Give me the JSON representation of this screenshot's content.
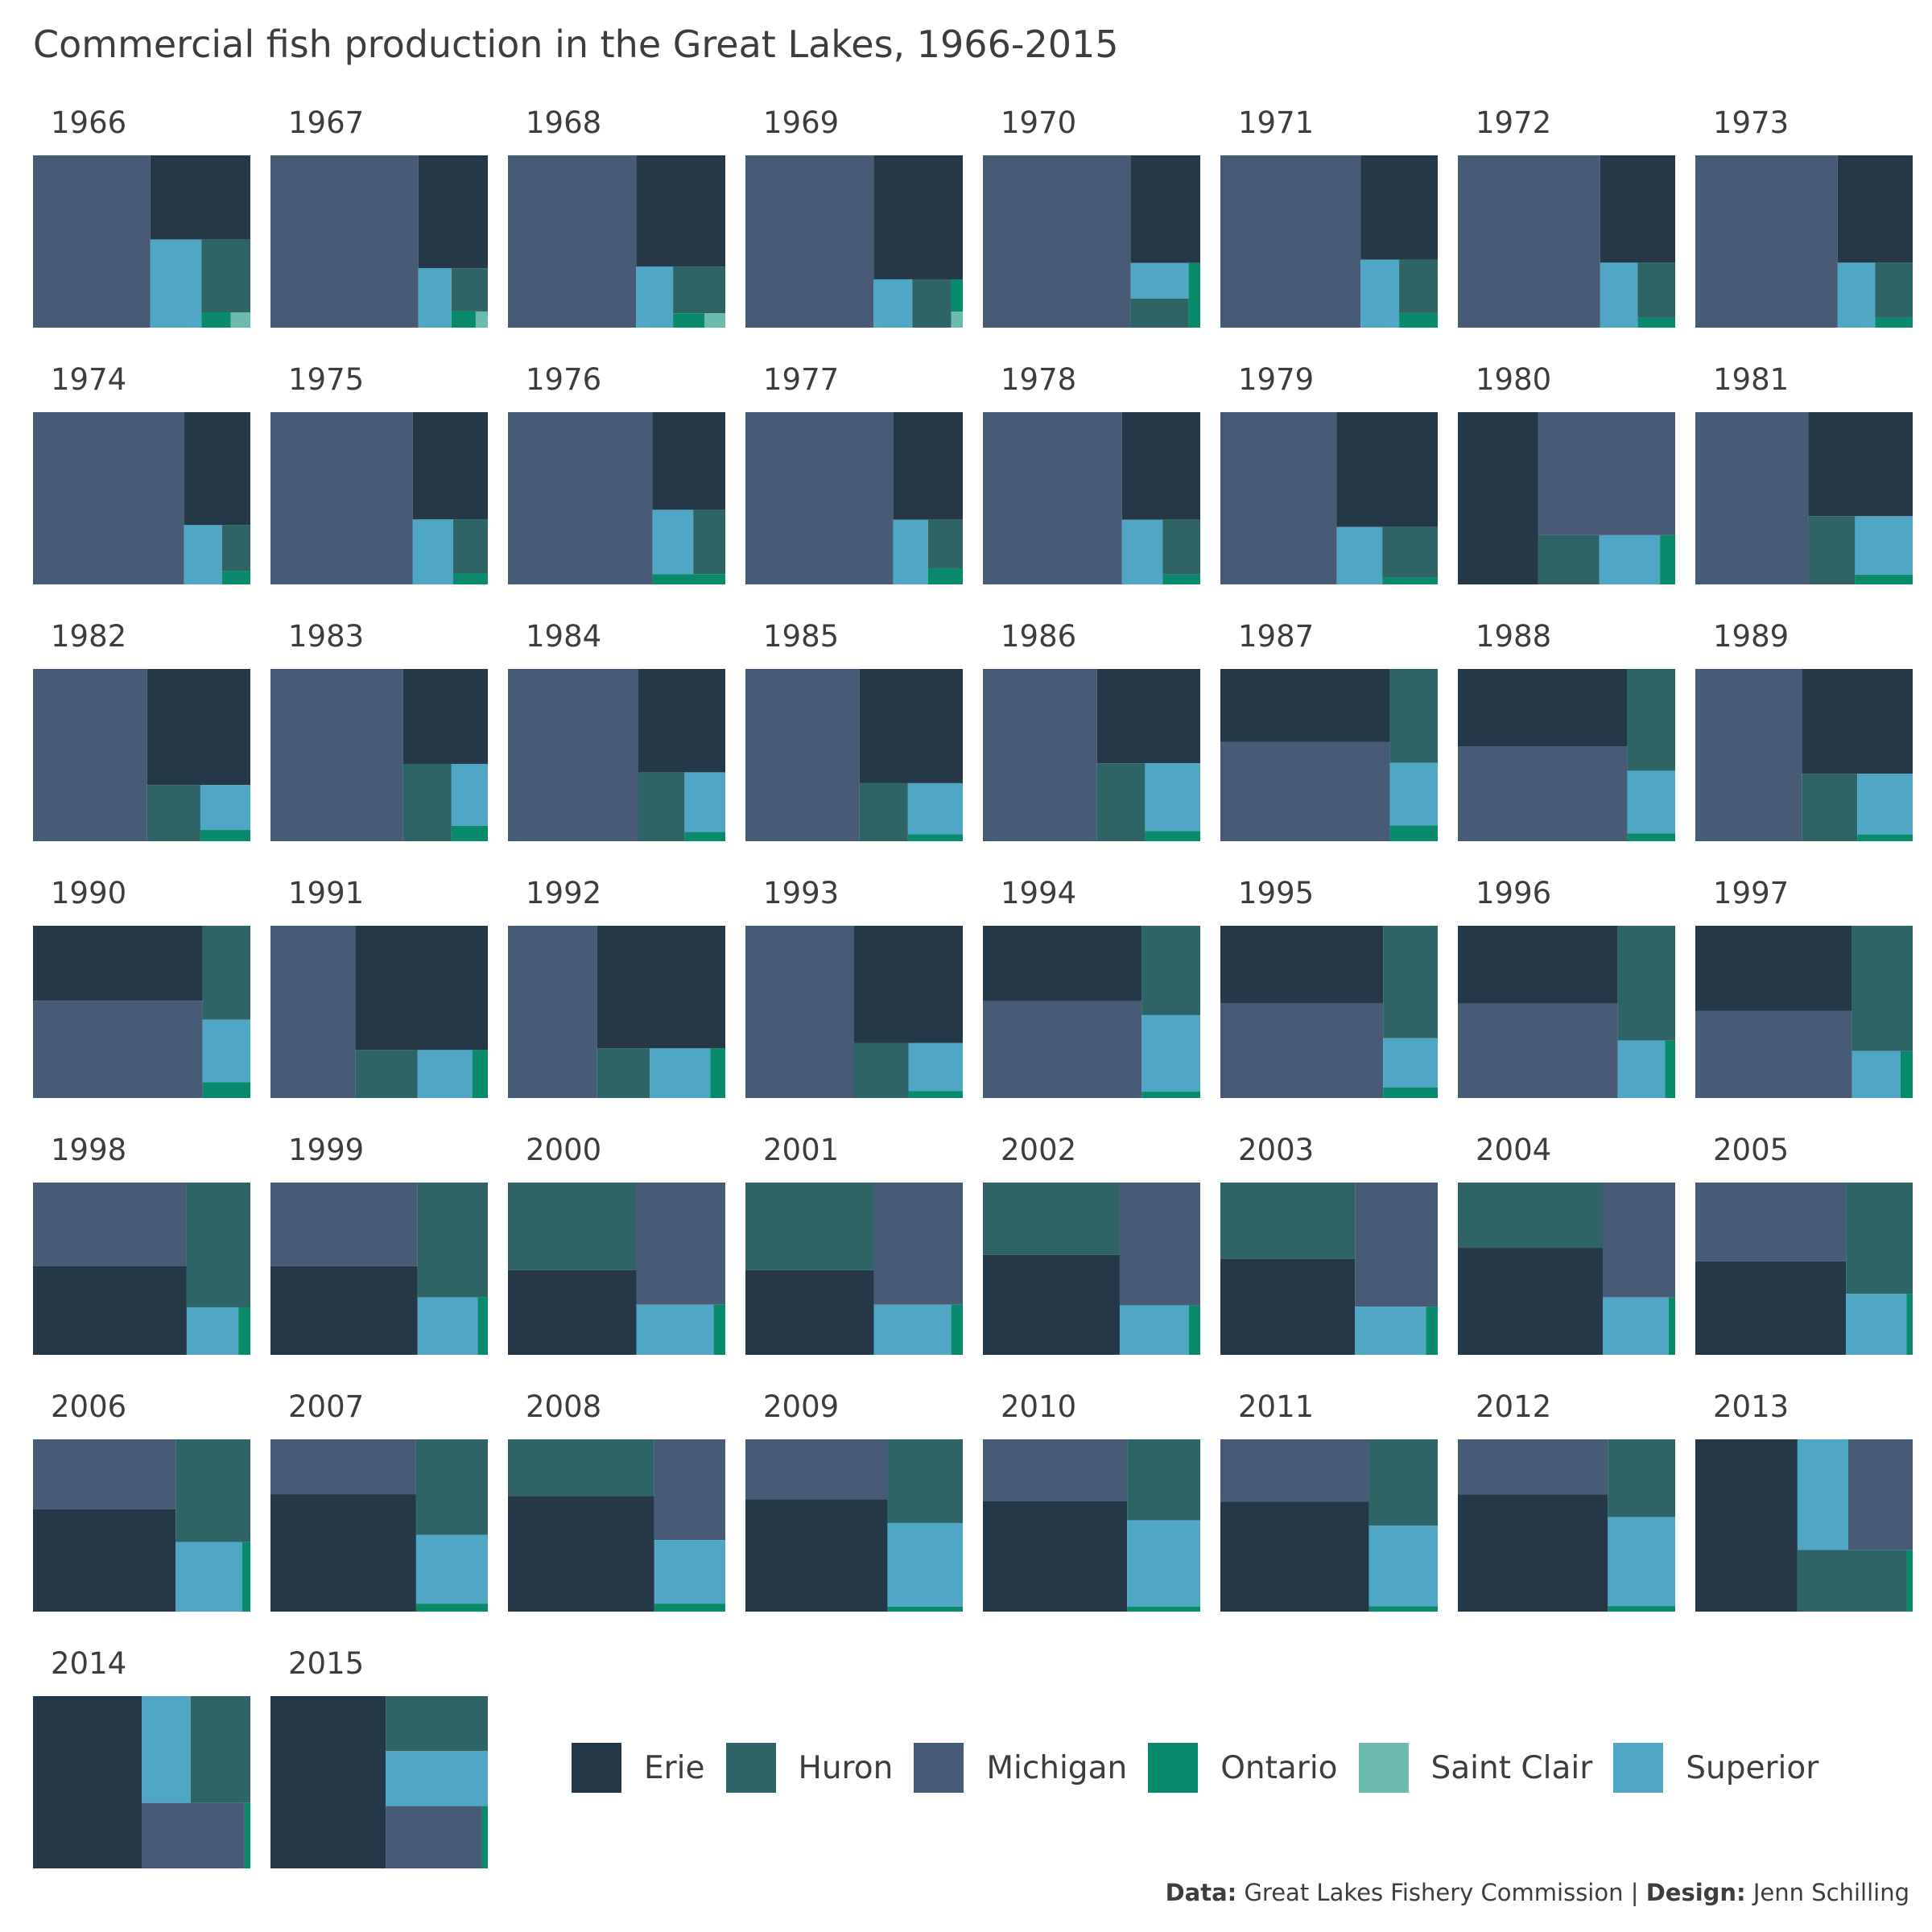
{
  "chart_data": {
    "type": "treemap",
    "title": "Commercial fish production in the Great Lakes, 1966-2015",
    "unit": "share of annual commercial catch (%)",
    "lakes": [
      "Erie",
      "Huron",
      "Michigan",
      "Ontario",
      "Saint Clair",
      "Superior"
    ],
    "colors": {
      "Erie": "#243847",
      "Huron": "#2e6465",
      "Michigan": "#475a76",
      "Ontario": "#0a8a6d",
      "Saint Clair": "#6cb9ad",
      "Superior": "#50a6c5"
    },
    "years": [
      {
        "year": "1966",
        "shares": {
          "Michigan": 54,
          "Erie": 22.5,
          "Superior": 12,
          "Huron": 9.5,
          "Ontario": 1.2,
          "Saint Clair": 0.8
        }
      },
      {
        "year": "1967",
        "shares": {
          "Michigan": 65,
          "Erie": 20,
          "Superior": 5,
          "Huron": 4,
          "Ontario": 1,
          "Saint Clair": 0.5
        }
      },
      {
        "year": "1968",
        "shares": {
          "Michigan": 59,
          "Erie": 26.5,
          "Superior": 6,
          "Huron": 6.5,
          "Ontario": 1.2,
          "Saint Clair": 0.8
        }
      },
      {
        "year": "1969",
        "shares": {
          "Michigan": 59,
          "Erie": 29.5,
          "Superior": 5,
          "Huron": 5,
          "Ontario": 1,
          "Saint Clair": 0.5
        }
      },
      {
        "year": "1970",
        "shares": {
          "Michigan": 68,
          "Erie": 20,
          "Superior": 5.5,
          "Huron": 4.5,
          "Ontario": 2
        }
      },
      {
        "year": "1971",
        "shares": {
          "Michigan": 64.5,
          "Erie": 21.5,
          "Superior": 7,
          "Huron": 5.5,
          "Ontario": 1.5
        }
      },
      {
        "year": "1972",
        "shares": {
          "Michigan": 65.5,
          "Erie": 21.5,
          "Superior": 6.5,
          "Huron": 5.5,
          "Ontario": 1
        }
      },
      {
        "year": "1973",
        "shares": {
          "Michigan": 65.5,
          "Erie": 21.5,
          "Superior": 6.5,
          "Huron": 5.5,
          "Ontario": 1
        }
      },
      {
        "year": "1974",
        "shares": {
          "Michigan": 69.5,
          "Erie": 20,
          "Superior": 6,
          "Huron": 3.5,
          "Ontario": 1
        }
      },
      {
        "year": "1975",
        "shares": {
          "Michigan": 65.5,
          "Erie": 21.5,
          "Superior": 7,
          "Huron": 5,
          "Ontario": 1
        }
      },
      {
        "year": "1976",
        "shares": {
          "Michigan": 66.5,
          "Erie": 19,
          "Superior": 7,
          "Huron": 5.5,
          "Ontario": 2
        }
      },
      {
        "year": "1977",
        "shares": {
          "Michigan": 68,
          "Erie": 20,
          "Superior": 6,
          "Huron": 4.5,
          "Ontario": 1.5
        }
      },
      {
        "year": "1978",
        "shares": {
          "Michigan": 64,
          "Erie": 22.5,
          "Superior": 7,
          "Huron": 5.5,
          "Ontario": 1
        }
      },
      {
        "year": "1979",
        "shares": {
          "Michigan": 53.5,
          "Erie": 31,
          "Superior": 7,
          "Huron": 7.5,
          "Ontario": 1
        }
      },
      {
        "year": "1980",
        "shares": {
          "Erie": 37,
          "Michigan": 45,
          "Huron": 8,
          "Superior": 8,
          "Ontario": 2
        }
      },
      {
        "year": "1981",
        "shares": {
          "Michigan": 52,
          "Erie": 29,
          "Huron": 8.5,
          "Superior": 9,
          "Ontario": 1.5
        }
      },
      {
        "year": "1982",
        "shares": {
          "Michigan": 52.5,
          "Erie": 32,
          "Huron": 8,
          "Superior": 6,
          "Ontario": 1.5
        }
      },
      {
        "year": "1983",
        "shares": {
          "Michigan": 61,
          "Erie": 21.5,
          "Huron": 10,
          "Superior": 6,
          "Ontario": 1.5
        }
      },
      {
        "year": "1984",
        "shares": {
          "Michigan": 60,
          "Erie": 24,
          "Huron": 8.5,
          "Superior": 6.5,
          "Ontario": 1
        }
      },
      {
        "year": "1985",
        "shares": {
          "Michigan": 52.5,
          "Erie": 31.5,
          "Huron": 7.5,
          "Superior": 7.5,
          "Ontario": 1
        }
      },
      {
        "year": "1986",
        "shares": {
          "Michigan": 52.5,
          "Erie": 26,
          "Huron": 10,
          "Superior": 10,
          "Ontario": 1.5
        }
      },
      {
        "year": "1987",
        "shares": {
          "Erie": 33,
          "Michigan": 45,
          "Huron": 12,
          "Superior": 8,
          "Ontario": 2
        }
      },
      {
        "year": "1988",
        "shares": {
          "Erie": 35,
          "Michigan": 43,
          "Huron": 13,
          "Superior": 8,
          "Ontario": 1
        }
      },
      {
        "year": "1989",
        "shares": {
          "Michigan": 49,
          "Erie": 31,
          "Huron": 10,
          "Superior": 9,
          "Ontario": 1
        }
      },
      {
        "year": "1990",
        "shares": {
          "Erie": 34,
          "Michigan": 44,
          "Huron": 12,
          "Superior": 8,
          "Ontario": 2
        }
      },
      {
        "year": "1991",
        "shares": {
          "Michigan": 39,
          "Erie": 44,
          "Huron": 8,
          "Superior": 7,
          "Ontario": 2
        }
      },
      {
        "year": "1992",
        "shares": {
          "Michigan": 41,
          "Erie": 42,
          "Huron": 7,
          "Superior": 8,
          "Ontario": 2
        }
      },
      {
        "year": "1993",
        "shares": {
          "Michigan": 50,
          "Erie": 34,
          "Huron": 8,
          "Superior": 7,
          "Ontario": 1
        }
      },
      {
        "year": "1994",
        "shares": {
          "Erie": 32,
          "Michigan": 41,
          "Huron": 14,
          "Superior": 12,
          "Ontario": 1
        }
      },
      {
        "year": "1995",
        "shares": {
          "Erie": 33,
          "Michigan": 40,
          "Huron": 16,
          "Superior": 7,
          "Ontario": 1.5
        }
      },
      {
        "year": "1996",
        "shares": {
          "Erie": 32,
          "Michigan": 39,
          "Huron": 17,
          "Superior": 7,
          "Ontario": 1.5
        }
      },
      {
        "year": "1997",
        "shares": {
          "Erie": 35,
          "Michigan": 36,
          "Huron": 20,
          "Superior": 6,
          "Ontario": 1.5
        }
      },
      {
        "year": "1998",
        "shares": {
          "Michigan": 34,
          "Erie": 36,
          "Huron": 21,
          "Superior": 6.5,
          "Ontario": 1.5
        }
      },
      {
        "year": "1999",
        "shares": {
          "Michigan": 32,
          "Erie": 34,
          "Huron": 21,
          "Superior": 9,
          "Ontario": 1.5
        }
      },
      {
        "year": "2000",
        "shares": {
          "Huron": 29,
          "Erie": 28,
          "Michigan": 28,
          "Superior": 10,
          "Ontario": 1.5
        }
      },
      {
        "year": "2001",
        "shares": {
          "Huron": 29,
          "Erie": 28,
          "Michigan": 28,
          "Superior": 10,
          "Ontario": 1.5
        }
      },
      {
        "year": "2002",
        "shares": {
          "Huron": 26,
          "Erie": 36,
          "Michigan": 26,
          "Superior": 9,
          "Ontario": 1.5
        }
      },
      {
        "year": "2003",
        "shares": {
          "Huron": 27,
          "Erie": 34,
          "Michigan": 27,
          "Superior": 9,
          "Ontario": 1.5
        }
      },
      {
        "year": "2004",
        "shares": {
          "Huron": 25,
          "Erie": 41,
          "Michigan": 22,
          "Superior": 10,
          "Ontario": 1
        }
      },
      {
        "year": "2005",
        "shares": {
          "Michigan": 32,
          "Erie": 38,
          "Huron": 20,
          "Superior": 10,
          "Ontario": 1
        }
      },
      {
        "year": "2006",
        "shares": {
          "Michigan": 26,
          "Erie": 38,
          "Huron": 20,
          "Superior": 12,
          "Ontario": 1.5
        }
      },
      {
        "year": "2007",
        "shares": {
          "Michigan": 21,
          "Erie": 45,
          "Huron": 18,
          "Superior": 13,
          "Ontario": 1.5
        }
      },
      {
        "year": "2008",
        "shares": {
          "Huron": 22,
          "Erie": 45,
          "Michigan": 19,
          "Superior": 12,
          "Ontario": 1.5
        }
      },
      {
        "year": "2009",
        "shares": {
          "Michigan": 23,
          "Erie": 43,
          "Huron": 17,
          "Superior": 17,
          "Ontario": 1
        }
      },
      {
        "year": "2010",
        "shares": {
          "Michigan": 24,
          "Erie": 43,
          "Huron": 16,
          "Superior": 17,
          "Ontario": 1
        }
      },
      {
        "year": "2011",
        "shares": {
          "Michigan": 25,
          "Erie": 44,
          "Huron": 16,
          "Superior": 15,
          "Ontario": 1
        }
      },
      {
        "year": "2012",
        "shares": {
          "Michigan": 22,
          "Erie": 47,
          "Huron": 14,
          "Superior": 16,
          "Ontario": 1
        }
      },
      {
        "year": "2013",
        "shares": {
          "Erie": 47,
          "Superior": 15,
          "Michigan": 19,
          "Huron": 18,
          "Ontario": 1
        }
      },
      {
        "year": "2014",
        "shares": {
          "Erie": 50,
          "Superior": 14,
          "Huron": 17,
          "Michigan": 18,
          "Ontario": 1
        }
      },
      {
        "year": "2015",
        "shares": {
          "Erie": 53,
          "Huron": 15,
          "Superior": 15,
          "Michigan": 16,
          "Ontario": 1
        }
      }
    ],
    "legend": {
      "position": "bottom",
      "entries": [
        "Erie",
        "Huron",
        "Michigan",
        "Ontario",
        "Saint Clair",
        "Superior"
      ]
    },
    "caption": {
      "data_label": "Data:",
      "data_source": "Great Lakes Fishery Commission",
      "separator": "|",
      "design_label": "Design:",
      "designer": "Jenn Schilling"
    }
  }
}
